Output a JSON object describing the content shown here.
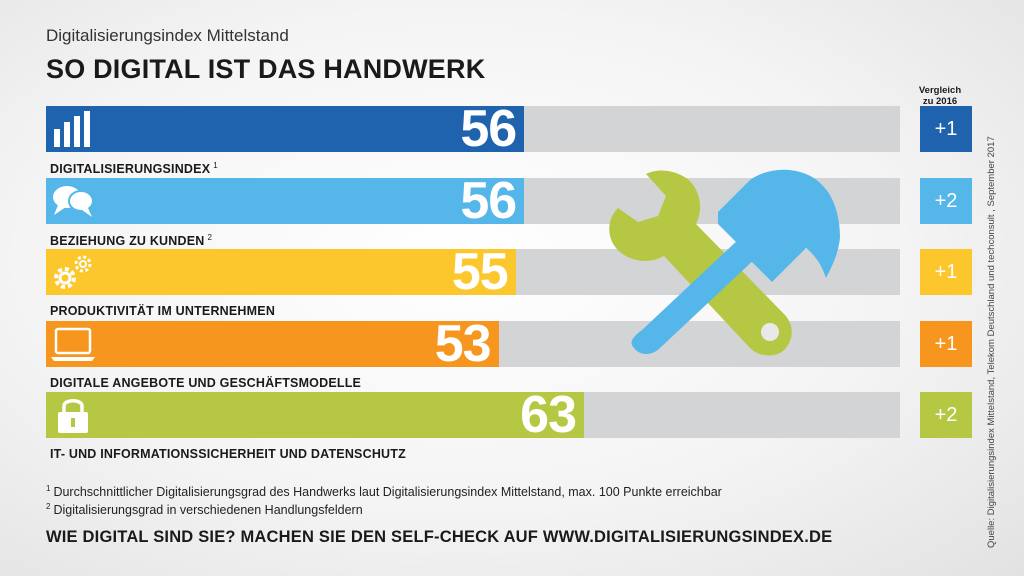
{
  "header": {
    "subtitle": "Digitalisierungsindex Mittelstand",
    "title": "SO DIGITAL IST DAS HANDWERK",
    "comparison_heading_line1": "Vergleich",
    "comparison_heading_line2": "zu 2016"
  },
  "chart_data": {
    "type": "bar",
    "orientation": "horizontal",
    "xlim": [
      0,
      100
    ],
    "categories": [
      "DIGITALISIERUNGSINDEX",
      "BEZIEHUNG ZU KUNDEN",
      "PRODUKTIVITÄT IM UNTERNEHMEN",
      "DIGITALE ANGEBOTE UND GESCHÄFTSMODELLE",
      "IT- UND INFORMATIONSSICHERHEIT UND DATENSCHUTZ"
    ],
    "values": [
      56,
      56,
      55,
      53,
      63
    ],
    "rows": [
      {
        "label": "DIGITALISIERUNGSINDEX",
        "footnote_ref": "1",
        "value": 56,
        "value_text": "56",
        "delta": "+1",
        "color": "#1f62ad",
        "icon": "bar-chart-icon"
      },
      {
        "label": "BEZIEHUNG ZU KUNDEN",
        "footnote_ref": "2",
        "value": 56,
        "value_text": "56",
        "delta": "+2",
        "color": "#55b6ea",
        "icon": "speech-bubbles-icon"
      },
      {
        "label": "PRODUKTIVITÄT IM UNTERNEHMEN",
        "footnote_ref": "",
        "value": 55,
        "value_text": "55",
        "delta": "+1",
        "color": "#fcc72c",
        "icon": "gears-icon"
      },
      {
        "label": "DIGITALE ANGEBOTE UND GESCHÄFTSMODELLE",
        "footnote_ref": "",
        "value": 53,
        "value_text": "53",
        "delta": "+1",
        "color": "#f6961f",
        "icon": "laptop-icon"
      },
      {
        "label": "IT- UND INFORMATIONSSICHERHEIT UND DATENSCHUTZ",
        "footnote_ref": "",
        "value": 63,
        "value_text": "63",
        "delta": "+2",
        "color": "#b6c743",
        "icon": "padlock-icon"
      }
    ],
    "track_color": "#d3d4d6"
  },
  "illustration": {
    "icon": "hammer-and-wrench-icon",
    "hammer_color": "#55b6ea",
    "wrench_color": "#b6c743"
  },
  "footnotes": [
    {
      "ref": "1",
      "text": "Durchschnittlicher Digitalisierungsgrad des Handwerks laut Digitalisierungsindex Mittelstand, max. 100 Punkte erreichbar"
    },
    {
      "ref": "2",
      "text": "Digitalisierungsgrad in verschiedenen Handlungsfeldern"
    }
  ],
  "cta": "WIE DIGITAL SIND SIE? MACHEN SIE DEN SELF-CHECK AUF WWW.DIGITALISIERUNGSINDEX.DE",
  "source": "Quelle: Digitalisierungsindex Mittelstand, Telekom Deutschland und techconsult , September 2017"
}
